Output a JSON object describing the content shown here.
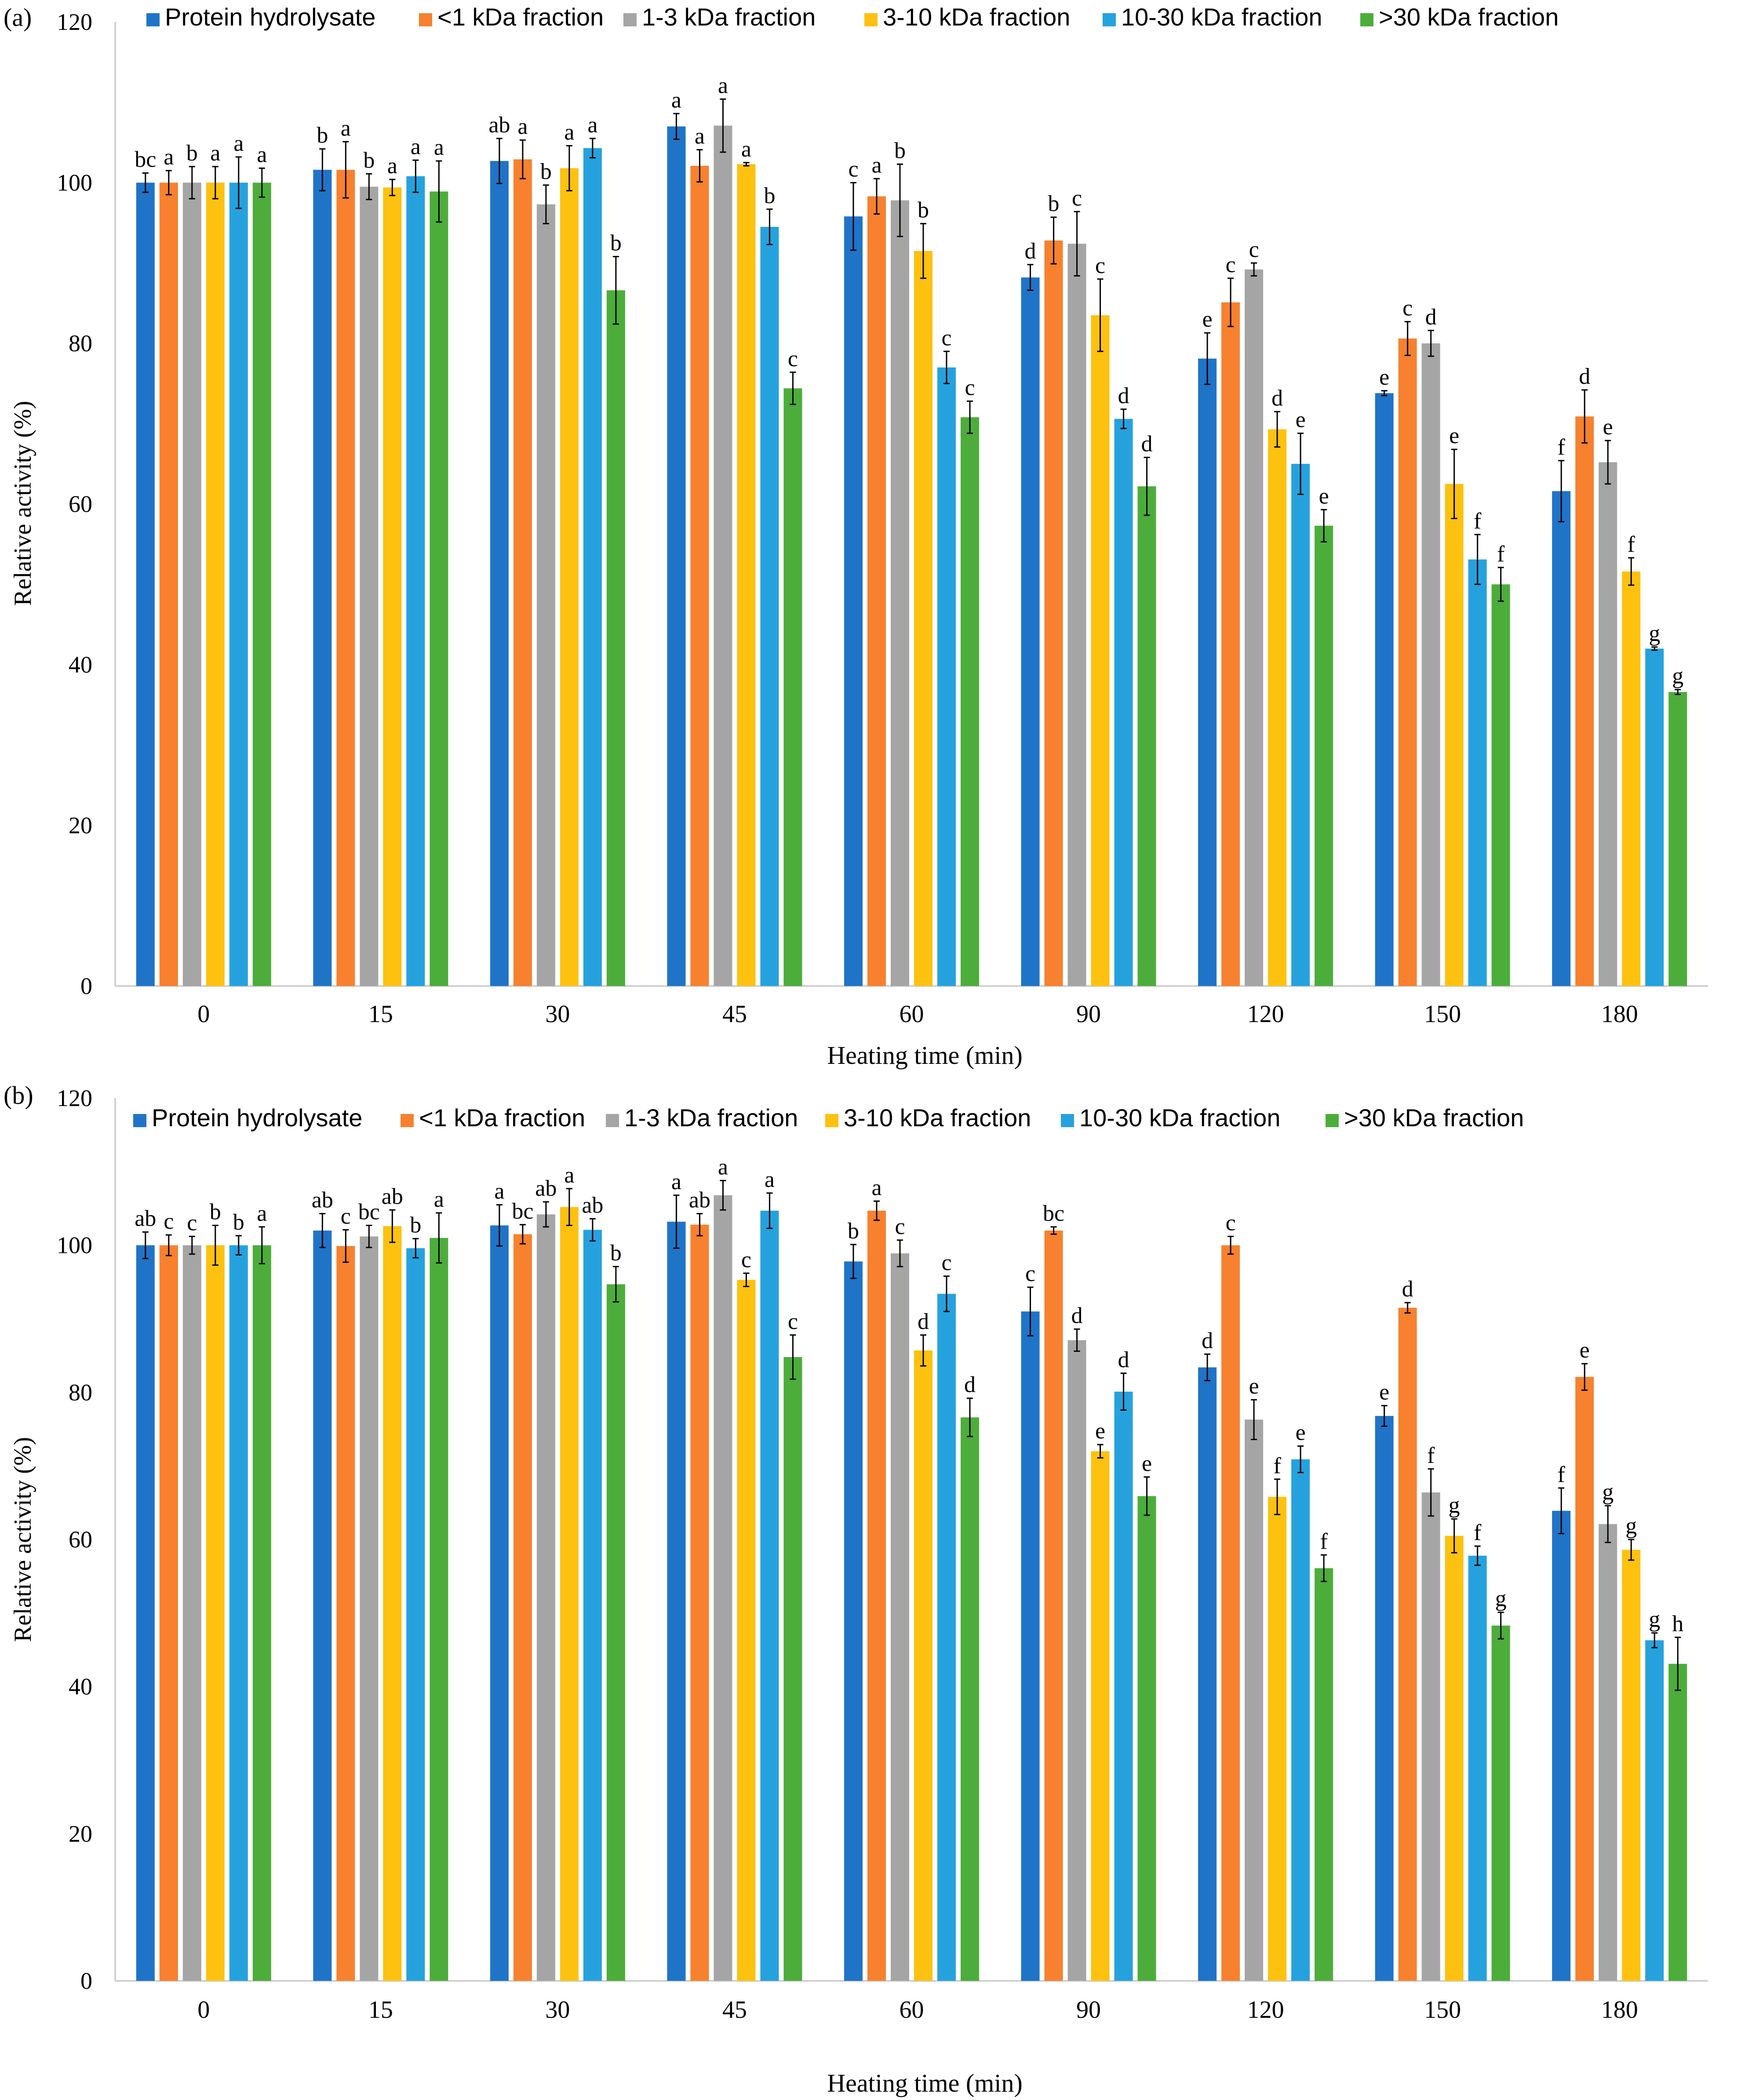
{
  "colors": {
    "protein_hydrolysate": "#1f74c8",
    "lt1kda": "#f7812e",
    "kda1_3": "#a5a5a5",
    "kda3_10": "#fdc10f",
    "kda10_30": "#25a2de",
    "gt30kda": "#4cad3b",
    "axis": "#d0d0d0",
    "text": "#000000"
  },
  "chart_data": [
    {
      "type": "bar",
      "panel_label": "(a)",
      "xlabel": "Heating time (min)",
      "ylabel": "Relative activity (%)",
      "ylim": [
        0,
        120
      ],
      "yticks": [
        "0",
        "20",
        "40",
        "60",
        "80",
        "100",
        "120"
      ],
      "categories": [
        "0",
        "15",
        "30",
        "45",
        "60",
        "90",
        "120",
        "150",
        "180"
      ],
      "legend_position": "top",
      "series": [
        {
          "name": "Protein hydrolysate",
          "color_key": "protein_hydrolysate",
          "values": [
            100,
            101.6,
            102.7,
            107,
            95.8,
            88.2,
            78.1,
            73.8,
            61.6
          ],
          "errors": [
            1.2,
            2.6,
            2.8,
            1.6,
            4.2,
            1.6,
            3.2,
            0.3,
            3.8
          ],
          "letters": [
            "bc",
            "b",
            "ab",
            "a",
            "c",
            "d",
            "e",
            "e",
            "f"
          ]
        },
        {
          "name": "<1 kDa fraction",
          "color_key": "lt1kda",
          "values": [
            100,
            101.6,
            102.9,
            102.1,
            98.3,
            92.8,
            85.1,
            80.6,
            70.9
          ],
          "errors": [
            1.5,
            3.5,
            2.4,
            2.0,
            2.2,
            2.9,
            3.0,
            2.1,
            3.3
          ],
          "letters": [
            "a",
            "a",
            "a",
            "a",
            "a",
            "b",
            "c",
            "c",
            "d"
          ]
        },
        {
          "name": "1-3 kDa fraction",
          "color_key": "kda1_3",
          "values": [
            100,
            99.5,
            97.3,
            107.1,
            97.8,
            92.4,
            89.2,
            80,
            65.2
          ],
          "errors": [
            2.0,
            1.6,
            2.4,
            3.3,
            4.5,
            4.0,
            0.8,
            1.6,
            2.7
          ],
          "letters": [
            "b",
            "b",
            "b",
            "a",
            "b",
            "c",
            "c",
            "d",
            "e"
          ]
        },
        {
          "name": "3-10 kDa fraction",
          "color_key": "kda3_10",
          "values": [
            100,
            99.4,
            101.8,
            102.3,
            91.5,
            83.5,
            69.3,
            62.5,
            51.6
          ],
          "errors": [
            2.0,
            1.0,
            2.8,
            0.2,
            3.4,
            4.5,
            2.2,
            4.3,
            1.7
          ],
          "letters": [
            "a",
            "a",
            "a",
            "a",
            "b",
            "c",
            "d",
            "e",
            "f"
          ]
        },
        {
          "name": "10-30 kDa fraction",
          "color_key": "kda10_30",
          "values": [
            100,
            100.8,
            104.3,
            94.5,
            77,
            70.6,
            65,
            53.1,
            42
          ],
          "errors": [
            3.2,
            2.0,
            1.2,
            2.2,
            2.0,
            1.2,
            3.8,
            3.1,
            0.2
          ],
          "letters": [
            "a",
            "a",
            "a",
            "b",
            "c",
            "d",
            "e",
            "f",
            "g"
          ]
        },
        {
          "name": ">30 kDa fraction",
          "color_key": "gt30kda",
          "values": [
            100,
            98.9,
            86.6,
            74.4,
            70.8,
            62.2,
            57.3,
            50,
            36.6
          ],
          "errors": [
            1.8,
            3.8,
            4.2,
            2.0,
            2.0,
            3.6,
            2.0,
            2.1,
            0.3
          ],
          "letters": [
            "a",
            "a",
            "b",
            "c",
            "c",
            "d",
            "e",
            "f",
            "g"
          ]
        }
      ]
    },
    {
      "type": "bar",
      "panel_label": "(b)",
      "xlabel": "Heating time (min)",
      "ylabel": "Relative activity (%)",
      "ylim": [
        0,
        120
      ],
      "yticks": [
        "0",
        "20",
        "40",
        "60",
        "80",
        "100",
        "120"
      ],
      "categories": [
        "0",
        "15",
        "30",
        "45",
        "60",
        "90",
        "120",
        "150",
        "180"
      ],
      "legend_position": "top",
      "series": [
        {
          "name": "Protein hydrolysate",
          "color_key": "protein_hydrolysate",
          "values": [
            100,
            102,
            102.7,
            103.2,
            97.8,
            91,
            83.4,
            76.8,
            63.9
          ],
          "errors": [
            1.8,
            2.3,
            2.8,
            3.6,
            2.3,
            3.3,
            1.8,
            1.4,
            3.1
          ],
          "letters": [
            "ab",
            "ab",
            "a",
            "a",
            "b",
            "c",
            "d",
            "e",
            "f"
          ]
        },
        {
          "name": "<1 kDa fraction",
          "color_key": "lt1kda",
          "values": [
            100,
            99.9,
            101.5,
            102.8,
            104.7,
            102,
            100,
            91.5,
            82.1
          ],
          "errors": [
            1.4,
            2.2,
            1.3,
            1.5,
            1.3,
            0.5,
            1.2,
            0.7,
            1.8
          ],
          "letters": [
            "c",
            "c",
            "bc",
            "ab",
            "a",
            "bc",
            "c",
            "d",
            "e"
          ]
        },
        {
          "name": "1-3 kDa fraction",
          "color_key": "kda1_3",
          "values": [
            100,
            101.2,
            104.2,
            106.8,
            98.9,
            87.1,
            76.3,
            66.4,
            62.1
          ],
          "errors": [
            1.2,
            1.5,
            1.7,
            2.0,
            1.8,
            1.5,
            2.7,
            3.2,
            2.5
          ],
          "letters": [
            "c",
            "bc",
            "ab",
            "a",
            "c",
            "d",
            "e",
            "f",
            "g"
          ]
        },
        {
          "name": "3-10 kDa fraction",
          "color_key": "kda3_10",
          "values": [
            100,
            102.6,
            105.2,
            95.3,
            85.7,
            72,
            65.8,
            60.5,
            58.6
          ],
          "errors": [
            2.7,
            2.2,
            2.5,
            0.9,
            2.1,
            0.9,
            2.4,
            2.3,
            1.4
          ],
          "letters": [
            "b",
            "ab",
            "a",
            "c",
            "d",
            "e",
            "f",
            "g",
            "g"
          ]
        },
        {
          "name": "10-30 kDa fraction",
          "color_key": "kda10_30",
          "values": [
            100,
            99.6,
            102.1,
            104.7,
            93.4,
            80.1,
            70.9,
            57.8,
            46.3
          ],
          "errors": [
            1.3,
            1.3,
            1.5,
            2.4,
            2.4,
            2.5,
            1.8,
            1.3,
            1.0
          ],
          "letters": [
            "b",
            "b",
            "ab",
            "a",
            "c",
            "d",
            "e",
            "f",
            "g"
          ]
        },
        {
          "name": ">30 kDa fraction",
          "color_key": "gt30kda",
          "values": [
            100,
            101,
            94.7,
            84.8,
            76.6,
            65.9,
            56.1,
            48.3,
            43.1
          ],
          "errors": [
            2.5,
            3.4,
            2.4,
            3.0,
            2.6,
            2.6,
            1.8,
            1.8,
            3.6
          ],
          "letters": [
            "a",
            "a",
            "b",
            "c",
            "d",
            "e",
            "f",
            "g",
            "h"
          ]
        }
      ]
    }
  ]
}
